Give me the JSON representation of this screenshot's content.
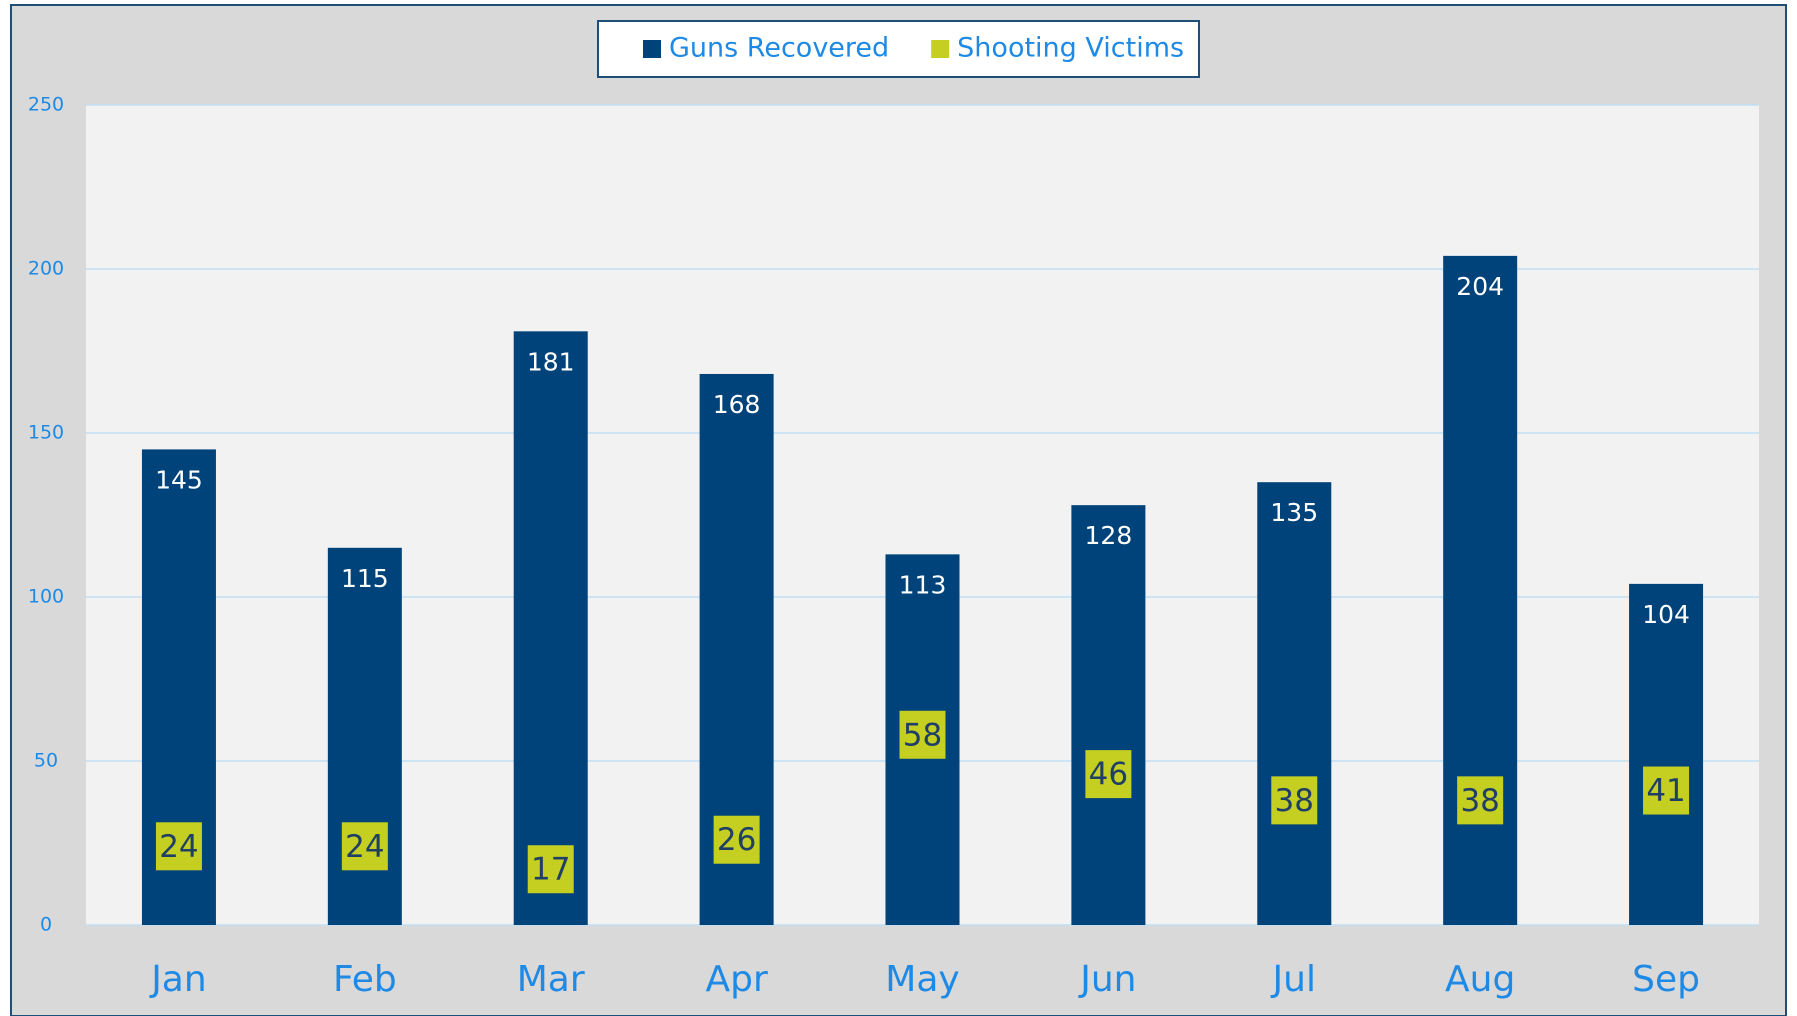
{
  "chart_data": {
    "type": "bar",
    "categories": [
      "Jan",
      "Feb",
      "Mar",
      "Apr",
      "May",
      "Jun",
      "Jul",
      "Aug",
      "Sep"
    ],
    "series": [
      {
        "name": "Guns Recovered",
        "color": "#00427a",
        "values": [
          145,
          115,
          181,
          168,
          113,
          128,
          135,
          204,
          104
        ]
      },
      {
        "name": "Shooting Victims",
        "color": "#c5cf22",
        "values": [
          24,
          24,
          17,
          26,
          58,
          46,
          38,
          38,
          41
        ]
      }
    ],
    "ylim": [
      0,
      250
    ],
    "yticks": [
      0,
      50,
      100,
      150,
      200,
      250
    ],
    "grid": true,
    "legend": "top"
  }
}
